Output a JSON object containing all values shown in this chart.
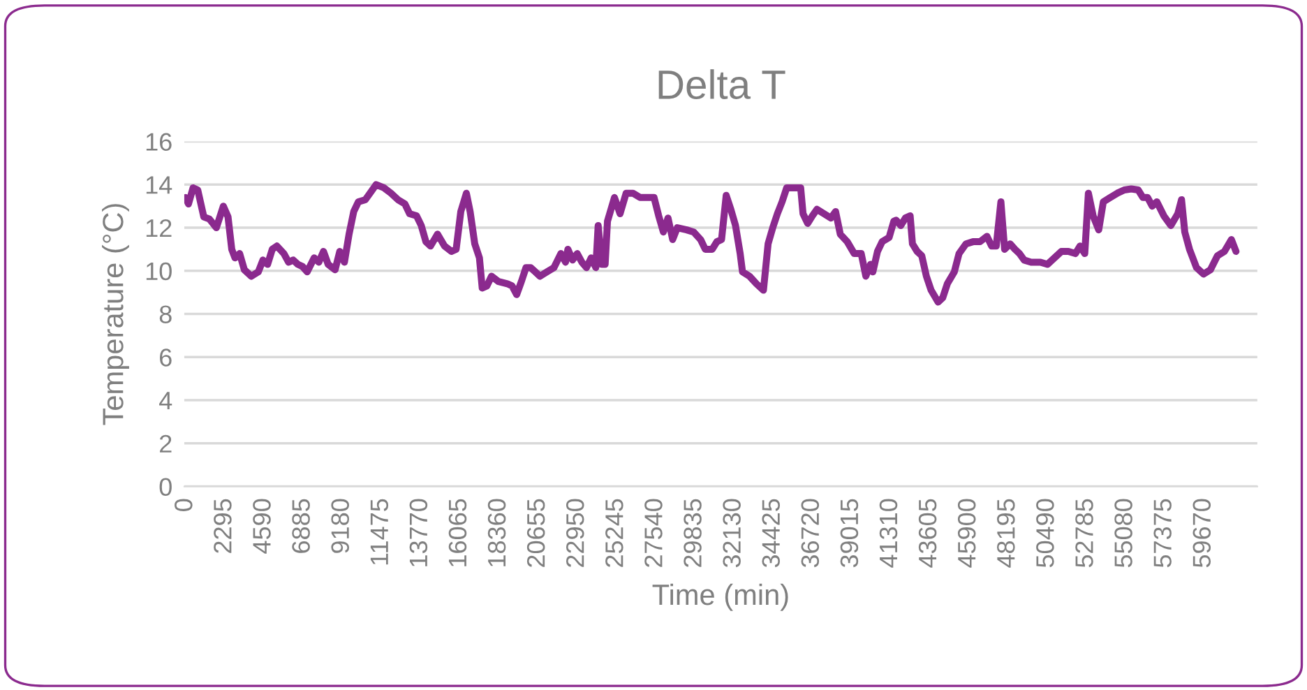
{
  "chart_data": {
    "type": "line",
    "title": "Delta T",
    "xlabel": "Time (min)",
    "ylabel": "Temperature (°C)",
    "xlim": [
      -80,
      62800
    ],
    "xticks": [
      0,
      2295,
      4590,
      6885,
      9180,
      11475,
      13770,
      16065,
      18360,
      20655,
      22950,
      25245,
      27540,
      29835,
      32130,
      34425,
      36720,
      39015,
      41310,
      43605,
      45900,
      48195,
      50490,
      52785,
      55080,
      57375,
      59670
    ],
    "ylim": [
      0,
      16
    ],
    "yticks": [
      0,
      2,
      4,
      6,
      8,
      10,
      12,
      14,
      16
    ],
    "grid": "y",
    "marker": "none",
    "line_style": "solid",
    "series": [
      {
        "color": "#8b2a8e",
        "x": [
          0,
          164,
          436,
          709,
          1064,
          1391,
          1801,
          2210,
          2483,
          2701,
          2892,
          3165,
          3438,
          3847,
          4256,
          4529,
          4802,
          5075,
          5348,
          5757,
          6030,
          6302,
          6575,
          6848,
          7121,
          7530,
          7803,
          8076,
          8349,
          8758,
          9031,
          9304,
          9576,
          9849,
          10122,
          10531,
          10804,
          11159,
          11622,
          12032,
          12441,
          12850,
          13123,
          13532,
          13805,
          14078,
          14350,
          14760,
          15169,
          15578,
          15851,
          16124,
          16451,
          16670,
          16942,
          17215,
          17379,
          17652,
          17924,
          18334,
          18852,
          19125,
          19398,
          19671,
          19944,
          20217,
          20354,
          20763,
          21172,
          21581,
          21990,
          22263,
          22400,
          22672,
          22945,
          23218,
          23491,
          23764,
          24036,
          24173,
          24391,
          24582,
          24719,
          25128,
          25455,
          25811,
          26220,
          26629,
          27038,
          27447,
          27720,
          27993,
          28266,
          28539,
          28811,
          29357,
          29766,
          30175,
          30448,
          30857,
          31130,
          31403,
          31676,
          31948,
          32221,
          32494,
          32631,
          33040,
          33449,
          33858,
          34131,
          34403,
          34676,
          34950,
          35222,
          35631,
          36040,
          36178,
          36450,
          36723,
          36996,
          37405,
          37814,
          38087,
          38360,
          38769,
          39178,
          39587,
          39860,
          40133,
          40269,
          40542,
          40815,
          41224,
          41497,
          41633,
          41907,
          42178,
          42455,
          42590,
          42865,
          43135,
          43406,
          43684,
          44092,
          44363,
          44634,
          45044,
          45321,
          45729,
          46138,
          46547,
          46955,
          47228,
          47500,
          47773,
          47990,
          48318,
          48594,
          48864,
          49135,
          49545,
          50092,
          50502,
          50911,
          51320,
          51729,
          52138,
          52409,
          52687,
          52900,
          53177,
          53505,
          53775,
          54185,
          54594,
          55003,
          55412,
          55822,
          56095,
          56370,
          56640,
          56912,
          57322,
          57731,
          58140,
          58359,
          58548,
          58825,
          59235,
          59644,
          60053,
          60461,
          60871,
          61280,
          61550
        ],
        "values": [
          13.4,
          13.1,
          13.85,
          13.75,
          12.5,
          12.4,
          12.0,
          13.0,
          12.5,
          11.0,
          10.6,
          10.8,
          10.05,
          9.75,
          9.95,
          10.5,
          10.3,
          11.0,
          11.15,
          10.8,
          10.4,
          10.5,
          10.3,
          10.2,
          9.95,
          10.6,
          10.4,
          10.9,
          10.3,
          10.05,
          10.9,
          10.4,
          11.7,
          12.75,
          13.2,
          13.3,
          13.6,
          14.0,
          13.85,
          13.6,
          13.3,
          13.1,
          12.65,
          12.55,
          12.1,
          11.35,
          11.15,
          11.7,
          11.15,
          10.9,
          11.0,
          12.75,
          13.6,
          12.75,
          11.25,
          10.6,
          9.2,
          9.3,
          9.75,
          9.5,
          9.4,
          9.3,
          8.9,
          9.5,
          10.15,
          10.15,
          10.05,
          9.75,
          9.95,
          10.15,
          10.8,
          10.4,
          11.0,
          10.5,
          10.8,
          10.4,
          10.15,
          10.6,
          10.15,
          12.1,
          10.3,
          10.3,
          12.3,
          13.4,
          12.65,
          13.6,
          13.6,
          13.4,
          13.4,
          13.4,
          12.55,
          11.8,
          12.45,
          11.45,
          12.0,
          11.9,
          11.8,
          11.45,
          11.0,
          11.0,
          11.35,
          11.45,
          13.5,
          12.85,
          12.1,
          10.8,
          9.95,
          9.75,
          9.4,
          9.1,
          11.25,
          12.0,
          12.65,
          13.2,
          13.85,
          13.85,
          13.85,
          12.65,
          12.2,
          12.55,
          12.85,
          12.65,
          12.45,
          12.75,
          11.7,
          11.35,
          10.8,
          10.8,
          9.75,
          10.3,
          9.95,
          10.9,
          11.35,
          11.55,
          12.3,
          12.35,
          12.1,
          12.45,
          12.55,
          11.25,
          10.9,
          10.7,
          9.75,
          9.1,
          8.55,
          8.75,
          9.4,
          9.95,
          10.8,
          11.25,
          11.35,
          11.35,
          11.6,
          11.15,
          11.15,
          13.2,
          11.0,
          11.25,
          11.0,
          10.8,
          10.5,
          10.4,
          10.4,
          10.3,
          10.6,
          10.9,
          10.9,
          10.8,
          11.15,
          10.8,
          13.6,
          12.55,
          11.9,
          13.2,
          13.4,
          13.6,
          13.75,
          13.8,
          13.75,
          13.4,
          13.4,
          13.0,
          13.2,
          12.55,
          12.1,
          12.65,
          13.3,
          11.8,
          11.0,
          10.15,
          9.85,
          10.05,
          10.7,
          10.9,
          11.45,
          10.9
        ]
      }
    ]
  }
}
